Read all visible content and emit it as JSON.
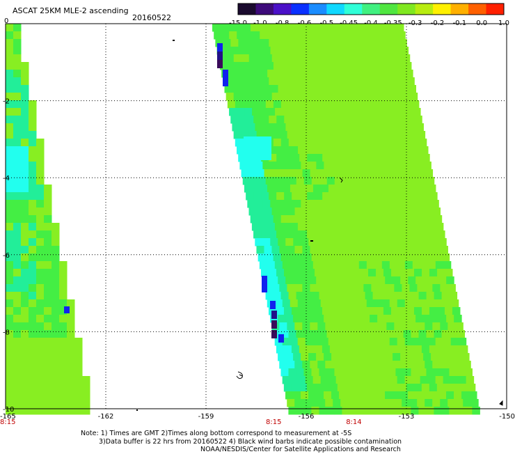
{
  "header": {
    "title": "ASCAT 25KM MLE-2 ascending",
    "date": "20160522"
  },
  "colorbar": {
    "labels": [
      "-15.0",
      "-1.0",
      "-0.8",
      "-0.6",
      "-0.5",
      "-0.45",
      "-0.4",
      "-0.35",
      "-0.3",
      "-0.2",
      "-0.1",
      "0.0",
      "1.0"
    ],
    "colors": [
      "#1a0a2e",
      "#3d0a7a",
      "#4a10c8",
      "#0a30ff",
      "#1a8cff",
      "#10d8ff",
      "#30ffd8",
      "#40f080",
      "#50e640",
      "#80e820",
      "#b8ec10",
      "#fff000",
      "#ffb000",
      "#ff6000",
      "#ff2000"
    ]
  },
  "map": {
    "lon_range": [
      -165,
      -150
    ],
    "lat_range": [
      -10,
      0
    ],
    "x_ticks": [
      "-165",
      "-162",
      "-159",
      "-156",
      "-153",
      "-150"
    ],
    "y_ticks": [
      "0",
      "-2",
      "-4",
      "-6",
      "-8",
      "-10"
    ],
    "pass_times": [
      {
        "label": "8:15",
        "lon": -165
      },
      {
        "label": "8:15",
        "lon": -157.0
      },
      {
        "label": "8:14",
        "lon": -154.6
      }
    ],
    "swath_colors": {
      "base": "#88ee22",
      "green": "#44ee44",
      "aqua": "#22ee99",
      "cyan": "#22ffee",
      "blue": "#1122ee",
      "navy": "#221188",
      "purple": "#3a0a5a"
    }
  },
  "notes": {
    "line1": "Note: 1) Times are GMT 2)Times along bottom correspond to measurement at -5S",
    "line2": "3)Data buffer is 22 hrs from 20160522 4) Black wind barbs indicate possible contamination",
    "line3": "NOAA/NESDIS/Center for Satellite Applications and Research"
  }
}
